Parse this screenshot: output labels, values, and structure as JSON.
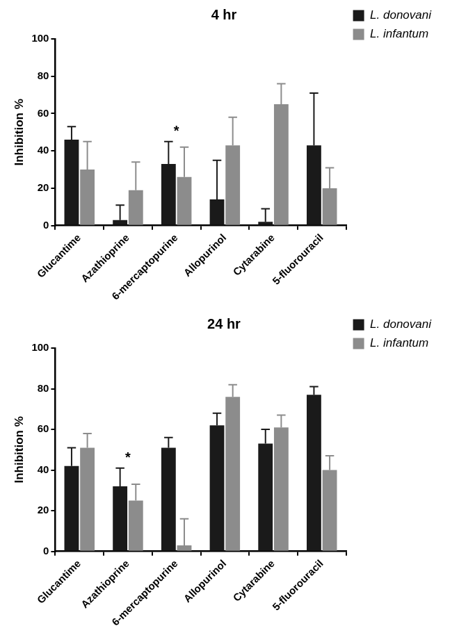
{
  "chart_data": [
    {
      "type": "bar",
      "title": "4 hr",
      "y_label": "Inhibition %",
      "categories": [
        "Glucantime",
        "Azathioprine",
        "6-mercaptopurine",
        "Allopurinol",
        "Cytarabine",
        "5-fluorouracil"
      ],
      "series": [
        {
          "name": "L. donovani",
          "color": "#1a1a1a",
          "values": [
            46,
            3,
            33,
            14,
            2,
            43
          ],
          "errors": [
            7,
            8,
            12,
            21,
            7,
            28
          ]
        },
        {
          "name": "L. infantum",
          "color": "#8c8c8c",
          "values": [
            30,
            19,
            26,
            43,
            65,
            20
          ],
          "errors": [
            15,
            15,
            16,
            15,
            11,
            11
          ]
        }
      ],
      "ylim": [
        0,
        100
      ],
      "yticks": [
        0,
        20,
        40,
        60,
        80,
        100
      ],
      "grid": false,
      "legend": "right",
      "annotations": [
        {
          "category": "6-mercaptopurine",
          "text": "*"
        }
      ]
    },
    {
      "type": "bar",
      "title": "24 hr",
      "y_label": "Inhibition %",
      "categories": [
        "Glucantime",
        "Azathioprine",
        "6-mercaptopurine",
        "Allopurinol",
        "Cytarabine",
        "5-fluorouracil"
      ],
      "series": [
        {
          "name": "L. donovani",
          "color": "#1a1a1a",
          "values": [
            42,
            32,
            51,
            62,
            53,
            77
          ],
          "errors": [
            9,
            9,
            5,
            6,
            7,
            4
          ]
        },
        {
          "name": "L. infantum",
          "color": "#8c8c8c",
          "values": [
            51,
            25,
            3,
            76,
            61,
            40
          ],
          "errors": [
            7,
            8,
            13,
            6,
            6,
            7
          ]
        }
      ],
      "ylim": [
        0,
        100
      ],
      "yticks": [
        0,
        20,
        40,
        60,
        80,
        100
      ],
      "grid": false,
      "legend": "right",
      "annotations": [
        {
          "category": "Azathioprine",
          "text": "*"
        }
      ]
    }
  ]
}
